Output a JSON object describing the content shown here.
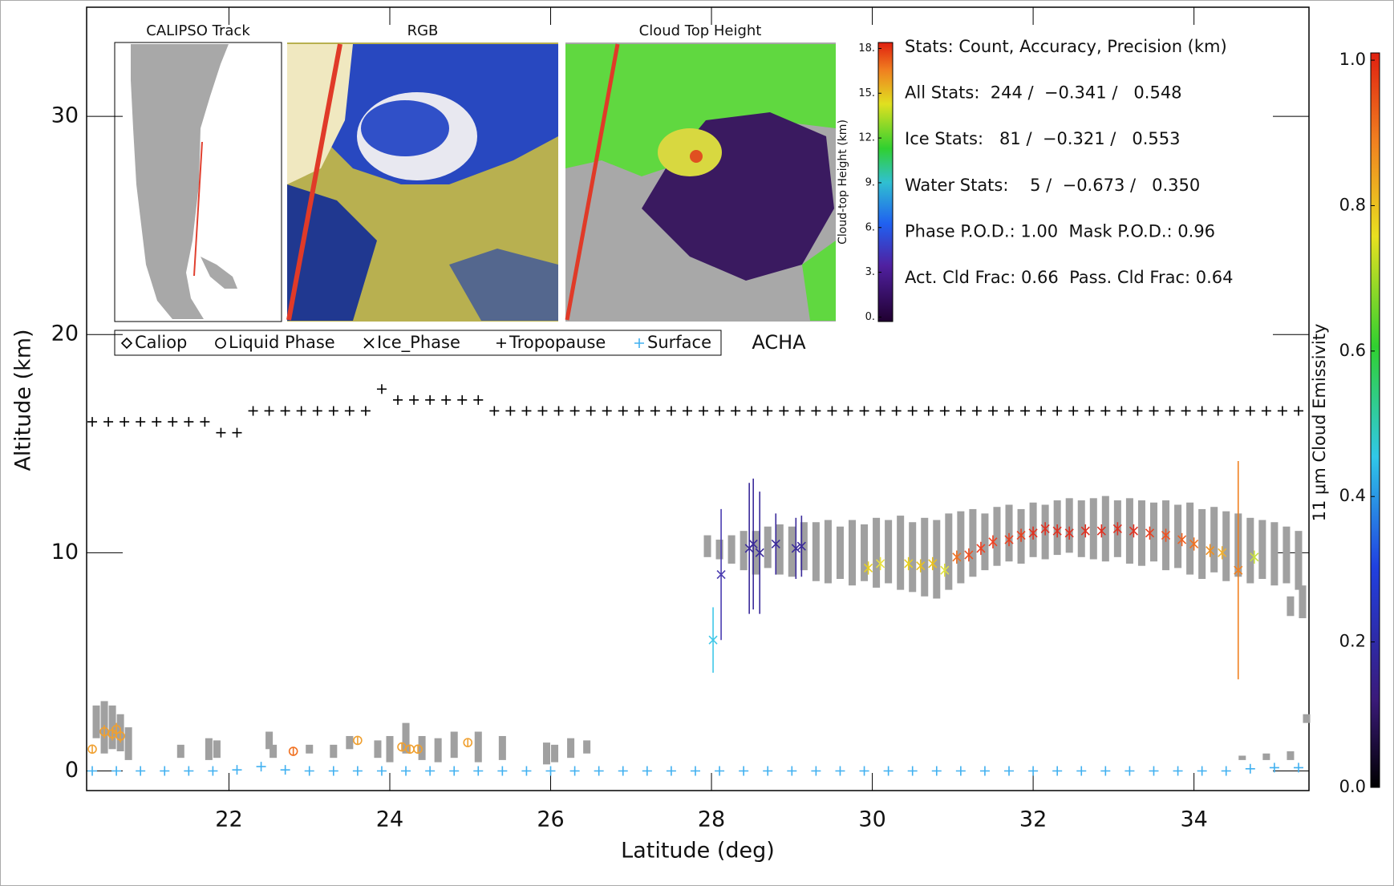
{
  "chart_data": {
    "type": "scatter",
    "xlabel": "Latitude (deg)",
    "ylabel": "Altitude (km)",
    "xlim": [
      20.23,
      35.43
    ],
    "ylim": [
      -0.9,
      35
    ],
    "xticks": [
      22,
      24,
      26,
      28,
      30,
      32,
      34
    ],
    "yticks": [
      0,
      10,
      20,
      30
    ],
    "inset_titles": [
      "CALIPSO Track",
      "RGB",
      "Cloud Top Height"
    ],
    "inset_colorbar": {
      "label": "Cloud-top Height (km)",
      "lim": [
        -0.3,
        18.4
      ],
      "ticks": [
        {
          "value": 0,
          "label": "0."
        },
        {
          "value": 3,
          "label": "3."
        },
        {
          "value": 6,
          "label": "6."
        },
        {
          "value": 9,
          "label": "9."
        },
        {
          "value": 12,
          "label": "12."
        },
        {
          "value": 15,
          "label": "15."
        },
        {
          "value": 18,
          "label": "18."
        }
      ]
    },
    "colorbar": {
      "label": "11 μm Cloud Emissivity",
      "lim": [
        0,
        1.01
      ],
      "ticks": [
        {
          "value": 0,
          "label": "0.0"
        },
        {
          "value": 0.2,
          "label": "0.2"
        },
        {
          "value": 0.4,
          "label": "0.4"
        },
        {
          "value": 0.6,
          "label": "0.6"
        },
        {
          "value": 0.8,
          "label": "0.8"
        },
        {
          "value": 1,
          "label": "1.0"
        }
      ]
    },
    "stats": [
      "Stats: Count, Accuracy, Precision (km)",
      "All Stats:  244 /  −0.341 /   0.548",
      "Ice Stats:   81 /  −0.321 /   0.553",
      "Water Stats:    5 /  −0.673 /   0.350",
      "Phase P.O.D.: 1.00  Mask P.O.D.: 0.96",
      "Act. Cld Frac: 0.66  Pass. Cld Frac: 0.64"
    ],
    "annotation": "ACHA",
    "series": [
      {
        "name": "Caliop",
        "marker": "diamond",
        "color": "#a0a0a0",
        "x": [
          20.35,
          20.45,
          20.55,
          20.65,
          20.75,
          21.4,
          21.75,
          21.85,
          22.5,
          22.55,
          23.0,
          23.3,
          23.5,
          23.85,
          24.0,
          24.2,
          24.4,
          24.6,
          24.8,
          25.1,
          25.4,
          25.95,
          26.05,
          26.25,
          26.45,
          27.95,
          28.1,
          28.25,
          28.4,
          28.55,
          28.7,
          28.85,
          29.0,
          29.15,
          29.3,
          29.45,
          29.6,
          29.75,
          29.9,
          30.05,
          30.2,
          30.35,
          30.5,
          30.65,
          30.8,
          30.95,
          31.1,
          31.25,
          31.4,
          31.55,
          31.7,
          31.85,
          32.0,
          32.15,
          32.3,
          32.45,
          32.6,
          32.75,
          32.9,
          33.05,
          33.2,
          33.35,
          33.5,
          33.65,
          33.8,
          33.95,
          34.1,
          34.25,
          34.4,
          34.55,
          34.7,
          34.85,
          35.0,
          35.15,
          35.3,
          35.2,
          35.35,
          34.6,
          34.9,
          35.2,
          35.4
        ],
        "base": [
          1.5,
          0.8,
          1.0,
          0.9,
          0.5,
          0.6,
          0.5,
          0.6,
          1.0,
          0.6,
          0.8,
          0.6,
          1.0,
          0.6,
          0.4,
          0.8,
          0.5,
          0.4,
          0.6,
          0.4,
          0.5,
          0.3,
          0.4,
          0.6,
          0.8,
          9.8,
          9.7,
          9.5,
          9.2,
          9.0,
          9.3,
          9.0,
          8.9,
          9.2,
          8.7,
          8.6,
          8.8,
          8.5,
          8.7,
          8.4,
          8.6,
          8.3,
          8.2,
          8.0,
          7.9,
          8.3,
          8.6,
          8.9,
          9.2,
          9.4,
          9.6,
          9.5,
          9.8,
          9.7,
          9.9,
          10.0,
          9.8,
          9.7,
          9.6,
          9.8,
          9.5,
          9.4,
          9.6,
          9.2,
          9.3,
          9.0,
          8.8,
          9.1,
          8.7,
          8.9,
          8.6,
          8.8,
          8.5,
          8.6,
          8.3,
          7.1,
          7.0,
          0.5,
          0.5,
          0.5,
          2.2
        ],
        "top": [
          3.0,
          3.2,
          3.0,
          2.6,
          2.0,
          1.2,
          1.5,
          1.4,
          1.8,
          1.2,
          1.2,
          1.2,
          1.6,
          1.4,
          1.6,
          2.2,
          1.6,
          1.5,
          1.8,
          1.8,
          1.6,
          1.3,
          1.2,
          1.5,
          1.4,
          10.8,
          10.6,
          10.8,
          11.0,
          11.0,
          11.2,
          11.3,
          11.2,
          11.4,
          11.4,
          11.5,
          11.2,
          11.5,
          11.3,
          11.6,
          11.5,
          11.7,
          11.4,
          11.6,
          11.5,
          11.8,
          11.9,
          12.0,
          11.8,
          12.1,
          12.2,
          12.0,
          12.3,
          12.2,
          12.4,
          12.5,
          12.4,
          12.5,
          12.6,
          12.4,
          12.5,
          12.4,
          12.3,
          12.4,
          12.2,
          12.3,
          12.0,
          12.1,
          11.9,
          11.8,
          11.6,
          11.5,
          11.4,
          11.2,
          11.0,
          8.0,
          8.5,
          0.7,
          0.8,
          0.9,
          2.6
        ]
      },
      {
        "name": "Liquid Phase",
        "marker": "circle",
        "color": "#f0a030",
        "x": [
          20.3,
          20.45,
          20.55,
          20.6,
          20.65,
          22.8,
          23.6,
          24.15,
          24.25,
          24.35,
          24.97
        ],
        "values": [
          1.0,
          1.8,
          1.7,
          1.9,
          1.6,
          0.9,
          1.4,
          1.1,
          1.0,
          1.0,
          1.3
        ],
        "error": [
          0.2,
          0.3,
          0.3,
          0.3,
          0.3,
          0.2,
          0.2,
          0.2,
          0.2,
          0.2,
          0.2
        ],
        "colors": [
          "#f0a030",
          "#f0a030",
          "#f0a030",
          "#f0a030",
          "#f0a030",
          "#f07020",
          "#f0a030",
          "#f0a030",
          "#f0a030",
          "#f0a030",
          "#f0a030"
        ]
      },
      {
        "name": "Ice_Phase",
        "marker": "x",
        "color": "#3a2a9a",
        "x": [
          28.02,
          28.12,
          28.47,
          28.52,
          28.6,
          28.8,
          29.05,
          29.12,
          29.95,
          30.1,
          30.45,
          30.6,
          30.75,
          30.9,
          31.05,
          31.2,
          31.35,
          31.5,
          31.7,
          31.85,
          32.0,
          32.15,
          32.3,
          32.45,
          32.65,
          32.85,
          33.05,
          33.25,
          33.45,
          33.65,
          33.85,
          34.0,
          34.2,
          34.35,
          34.55,
          34.75
        ],
        "values": [
          6.0,
          9.0,
          10.2,
          10.4,
          10.0,
          10.4,
          10.2,
          10.3,
          9.3,
          9.5,
          9.5,
          9.4,
          9.5,
          9.2,
          9.8,
          9.9,
          10.2,
          10.5,
          10.6,
          10.8,
          10.9,
          11.1,
          11.0,
          10.9,
          11.0,
          11.0,
          11.1,
          11.0,
          10.9,
          10.8,
          10.6,
          10.4,
          10.1,
          10.0,
          9.2,
          9.8
        ],
        "error": [
          1.5,
          3.0,
          3.0,
          3.0,
          2.8,
          1.4,
          1.4,
          1.4,
          0.3,
          0.3,
          0.3,
          0.3,
          0.3,
          0.3,
          0.3,
          0.3,
          0.3,
          0.3,
          0.3,
          0.3,
          0.3,
          0.3,
          0.3,
          0.3,
          0.3,
          0.3,
          0.3,
          0.3,
          0.3,
          0.3,
          0.3,
          0.3,
          0.3,
          0.3,
          5.0,
          0.3
        ],
        "colors": [
          "#40c8e8",
          "#4a3cb0",
          "#3a2a9a",
          "#3a2a9a",
          "#3a2a9a",
          "#3a2a9a",
          "#3a2a9a",
          "#3a2a9a",
          "#e8d020",
          "#e8e040",
          "#e8d020",
          "#e8c020",
          "#e8c020",
          "#e0e040",
          "#f07020",
          "#f05020",
          "#f04020",
          "#f04020",
          "#e84020",
          "#e84020",
          "#e03020",
          "#e03020",
          "#e03020",
          "#e03020",
          "#e03020",
          "#e03020",
          "#e03020",
          "#e03020",
          "#e84020",
          "#f05020",
          "#f06020",
          "#f07020",
          "#f09020",
          "#f0b030",
          "#f08020",
          "#c8e040"
        ]
      },
      {
        "name": "Tropopause",
        "marker": "plus",
        "color": "#000000",
        "x": [
          20.3,
          20.5,
          20.7,
          20.9,
          21.1,
          21.3,
          21.5,
          21.7,
          21.9,
          22.1,
          22.3,
          22.5,
          22.7,
          22.9,
          23.1,
          23.3,
          23.5,
          23.7,
          23.9,
          24.1,
          24.3,
          24.5,
          24.7,
          24.9,
          25.1,
          25.3,
          25.5,
          25.7,
          25.9,
          26.1,
          26.3,
          26.5,
          26.7,
          26.9,
          27.1,
          27.3,
          27.5,
          27.7,
          27.9,
          28.1,
          28.3,
          28.5,
          28.7,
          28.9,
          29.1,
          29.3,
          29.5,
          29.7,
          29.9,
          30.1,
          30.3,
          30.5,
          30.7,
          30.9,
          31.1,
          31.3,
          31.5,
          31.7,
          31.9,
          32.1,
          32.3,
          32.5,
          32.7,
          32.9,
          33.1,
          33.3,
          33.5,
          33.7,
          33.9,
          34.1,
          34.3,
          34.5,
          34.7,
          34.9,
          35.1,
          35.3
        ],
        "values": [
          16,
          16,
          16,
          16,
          16,
          16,
          16,
          16,
          15.5,
          15.5,
          16.5,
          16.5,
          16.5,
          16.5,
          16.5,
          16.5,
          16.5,
          16.5,
          17.5,
          17,
          17,
          17,
          17,
          17,
          17,
          16.5,
          16.5,
          16.5,
          16.5,
          16.5,
          16.5,
          16.5,
          16.5,
          16.5,
          16.5,
          16.5,
          16.5,
          16.5,
          16.5,
          16.5,
          16.5,
          16.5,
          16.5,
          16.5,
          16.5,
          16.5,
          16.5,
          16.5,
          16.5,
          16.5,
          16.5,
          16.5,
          16.5,
          16.5,
          16.5,
          16.5,
          16.5,
          16.5,
          16.5,
          16.5,
          16.5,
          16.5,
          16.5,
          16.5,
          16.5,
          16.5,
          16.5,
          16.5,
          16.5,
          16.5,
          16.5,
          16.5,
          16.5,
          16.5,
          16.5,
          16.5
        ]
      },
      {
        "name": "Surface",
        "marker": "plus",
        "color": "#40b0f0",
        "x": [
          20.3,
          20.6,
          20.9,
          21.2,
          21.5,
          21.8,
          22.1,
          22.4,
          22.7,
          23.0,
          23.3,
          23.6,
          23.9,
          24.2,
          24.5,
          24.8,
          25.1,
          25.4,
          25.7,
          26.0,
          26.3,
          26.6,
          26.9,
          27.2,
          27.5,
          27.8,
          28.1,
          28.4,
          28.7,
          29.0,
          29.3,
          29.6,
          29.9,
          30.2,
          30.5,
          30.8,
          31.1,
          31.4,
          31.7,
          32.0,
          32.3,
          32.6,
          32.9,
          33.2,
          33.5,
          33.8,
          34.1,
          34.4,
          34.7,
          35.0,
          35.3
        ],
        "values": [
          0,
          0,
          0,
          0,
          0,
          0,
          0.05,
          0.2,
          0.05,
          0,
          0,
          0,
          0,
          0,
          0,
          0,
          0,
          0,
          0,
          0,
          0,
          0,
          0,
          0,
          0,
          0,
          0,
          0,
          0,
          0,
          0,
          0,
          0,
          0,
          0,
          0,
          0,
          0,
          0,
          0,
          0,
          0,
          0,
          0,
          0,
          0,
          0,
          0,
          0.1,
          0.15,
          0.15
        ]
      }
    ]
  }
}
